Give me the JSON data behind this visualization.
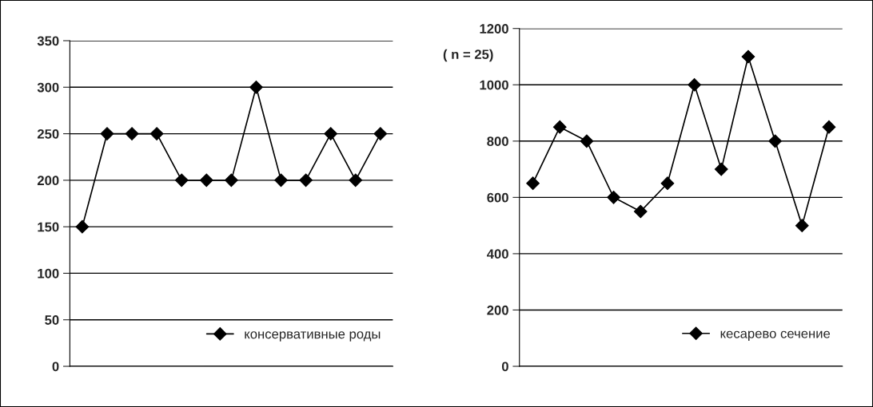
{
  "chart_data": [
    {
      "type": "line",
      "categories": [
        null,
        null,
        null,
        null,
        null,
        null,
        null,
        null,
        null,
        null,
        null,
        null,
        null
      ],
      "series": [
        {
          "name": "консервативные роды",
          "color": "#000000",
          "values": [
            150,
            250,
            250,
            250,
            200,
            200,
            200,
            300,
            200,
            200,
            250,
            200,
            250
          ]
        }
      ],
      "ylim": [
        0,
        350
      ],
      "yticks": [
        0,
        50,
        100,
        150,
        200,
        250,
        300,
        350
      ],
      "grid": "y",
      "legend": "bottom right",
      "marker": "diamond",
      "line_style": "solid",
      "tick_labels": "y"
    },
    {
      "type": "line",
      "categories": [
        null,
        null,
        null,
        null,
        null,
        null,
        null,
        null,
        null,
        null,
        null,
        null
      ],
      "series": [
        {
          "name": "кесарево сечение",
          "color": "#000000",
          "values": [
            650,
            850,
            800,
            600,
            550,
            650,
            1000,
            700,
            1100,
            800,
            500,
            850
          ]
        }
      ],
      "ylim": [
        0,
        1200
      ],
      "yticks": [
        0,
        200,
        400,
        600,
        800,
        1000,
        1200
      ],
      "grid": "y",
      "legend": "bottom right",
      "marker": "diamond",
      "line_style": "solid",
      "tick_labels": "y",
      "annotations": [
        "( n = 25)"
      ]
    }
  ]
}
